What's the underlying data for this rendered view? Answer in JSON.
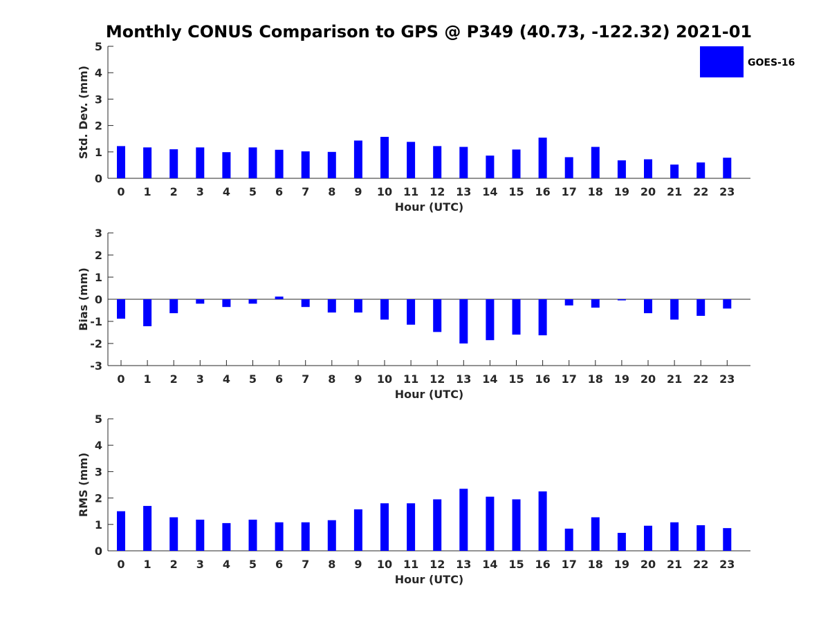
{
  "title": "Monthly CONUS Comparison to GPS @ P349 (40.73, -122.32) 2021-01",
  "legend": {
    "label": "GOES-16",
    "color": "#0000ff",
    "placement": "top-right"
  },
  "chart_data": [
    {
      "type": "bar",
      "xlabel": "Hour (UTC)",
      "ylabel": "Std. Dev. (mm)",
      "ylim": [
        0,
        5
      ],
      "yticks": [
        0,
        1,
        2,
        3,
        4,
        5
      ],
      "categories": [
        0,
        1,
        2,
        3,
        4,
        5,
        6,
        7,
        8,
        9,
        10,
        11,
        12,
        13,
        14,
        15,
        16,
        17,
        18,
        19,
        20,
        21,
        22,
        23
      ],
      "series": [
        {
          "name": "GOES-16",
          "values": [
            1.22,
            1.17,
            1.1,
            1.17,
            0.99,
            1.17,
            1.08,
            1.02,
            1.0,
            1.43,
            1.57,
            1.38,
            1.22,
            1.19,
            0.86,
            1.09,
            1.54,
            0.8,
            1.19,
            0.68,
            0.72,
            0.52,
            0.6,
            0.78
          ]
        }
      ]
    },
    {
      "type": "bar",
      "xlabel": "Hour (UTC)",
      "ylabel": "Bias (mm)",
      "ylim": [
        -3,
        3
      ],
      "yticks": [
        -3,
        -2,
        -1,
        0,
        1,
        2,
        3
      ],
      "categories": [
        0,
        1,
        2,
        3,
        4,
        5,
        6,
        7,
        8,
        9,
        10,
        11,
        12,
        13,
        14,
        15,
        16,
        17,
        18,
        19,
        20,
        21,
        22,
        23
      ],
      "series": [
        {
          "name": "GOES-16",
          "values": [
            -0.88,
            -1.22,
            -0.63,
            -0.2,
            -0.35,
            -0.2,
            0.12,
            -0.35,
            -0.6,
            -0.6,
            -0.92,
            -1.15,
            -1.48,
            -2.0,
            -1.85,
            -1.6,
            -1.63,
            -0.28,
            -0.38,
            -0.05,
            -0.63,
            -0.92,
            -0.75,
            -0.42
          ]
        }
      ]
    },
    {
      "type": "bar",
      "xlabel": "Hour (UTC)",
      "ylabel": "RMS (mm)",
      "ylim": [
        0,
        5
      ],
      "yticks": [
        0,
        1,
        2,
        3,
        4,
        5
      ],
      "categories": [
        0,
        1,
        2,
        3,
        4,
        5,
        6,
        7,
        8,
        9,
        10,
        11,
        12,
        13,
        14,
        15,
        16,
        17,
        18,
        19,
        20,
        21,
        22,
        23
      ],
      "series": [
        {
          "name": "GOES-16",
          "values": [
            1.5,
            1.7,
            1.27,
            1.18,
            1.05,
            1.18,
            1.08,
            1.08,
            1.16,
            1.57,
            1.8,
            1.8,
            1.95,
            2.35,
            2.05,
            1.95,
            2.25,
            0.84,
            1.27,
            0.68,
            0.95,
            1.08,
            0.97,
            0.86
          ]
        }
      ]
    }
  ]
}
